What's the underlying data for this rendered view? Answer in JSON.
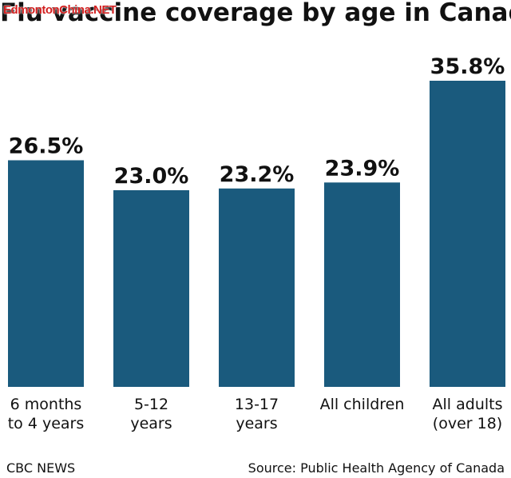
{
  "watermark": "EdmontonChina.NET",
  "footer": {
    "brand": "CBC NEWS",
    "source": "Source: Public Health Agency of Canada"
  },
  "colors": {
    "bar": "#1a5a7d",
    "text": "#111111",
    "background": "#ffffff",
    "watermark": "#d21f1f"
  },
  "chart_data": {
    "type": "bar",
    "title": "Flu vaccine coverage by age in Canada",
    "categories": [
      [
        "6 months",
        "to 4 years"
      ],
      [
        "5-12",
        "years"
      ],
      [
        "13-17",
        "years"
      ],
      [
        "All children"
      ],
      [
        "All adults",
        "(over 18)"
      ]
    ],
    "values": [
      26.5,
      23.0,
      23.2,
      23.9,
      35.8
    ],
    "value_labels": [
      "26.5%",
      "23.0%",
      "23.2%",
      "23.9%",
      "35.8%"
    ],
    "unit": "%",
    "xlabel": "",
    "ylabel": "",
    "ylim": [
      0,
      35.8
    ],
    "grid": false,
    "legend": "none"
  }
}
